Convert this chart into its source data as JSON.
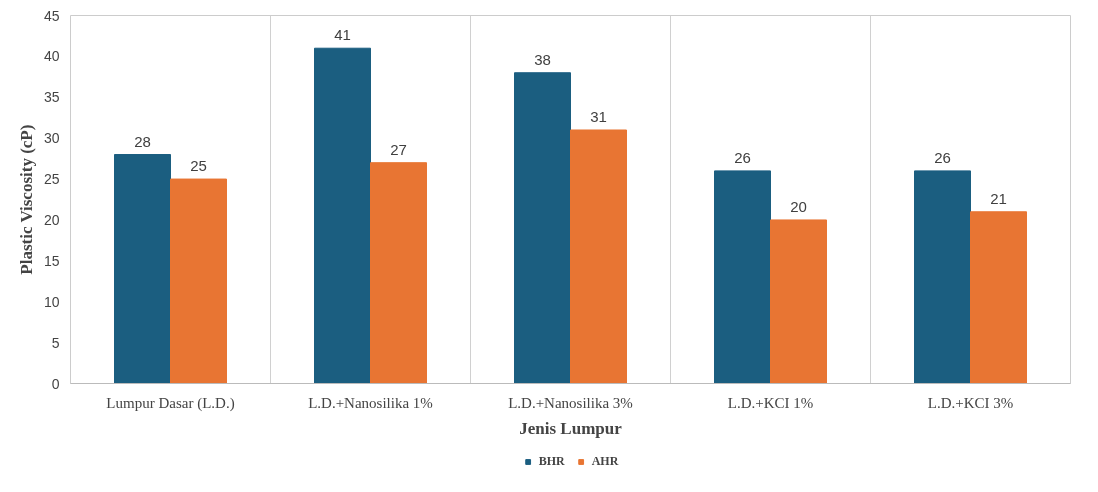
{
  "chart_data": {
    "type": "bar",
    "xlabel": "Jenis Lumpur",
    "ylabel": "Plastic Viscosity (cP)",
    "categories": [
      "Lumpur Dasar (L.D.)",
      "L.D.+Nanosilika 1%",
      "L.D.+Nanosilika 3%",
      "L.D.+KCI 1%",
      "L.D.+KCI 3%"
    ],
    "series": [
      {
        "name": "BHR",
        "color": "#1b5e80",
        "values": [
          28,
          41,
          38,
          26,
          26
        ]
      },
      {
        "name": "AHR",
        "color": "#e87533",
        "values": [
          25,
          27,
          31,
          20,
          21
        ]
      }
    ],
    "ylim": [
      0,
      45
    ],
    "yticks": [
      0,
      5,
      10,
      15,
      20,
      25,
      30,
      35,
      40,
      45
    ],
    "grid": "x",
    "legend": "bottom",
    "data_labels": true
  }
}
